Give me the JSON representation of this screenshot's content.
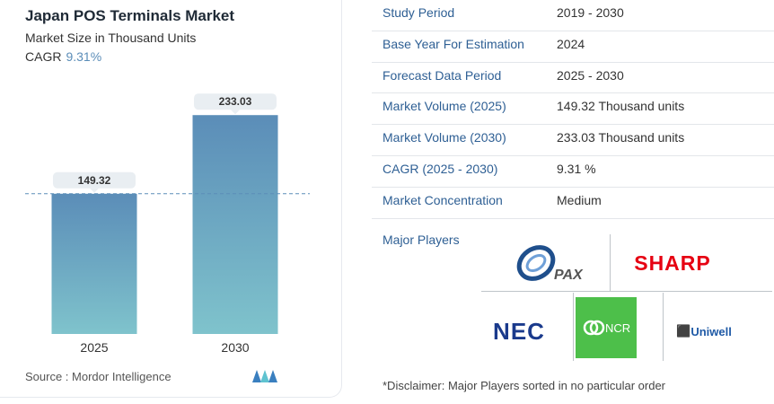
{
  "header": {
    "title": "Japan POS Terminals Market",
    "subtitle": "Market Size in Thousand Units",
    "cagr_label": "CAGR",
    "cagr_value": "9.31%"
  },
  "chart_data": {
    "type": "bar",
    "categories": [
      "2025",
      "2030"
    ],
    "values": [
      149.32,
      233.03
    ],
    "data_labels": [
      "149.32",
      "233.03"
    ],
    "ylim": [
      0,
      260
    ],
    "colors": {
      "bar_top": "#5b8db8",
      "bar_bottom": "#7fc3cc",
      "reference_line": "#5b8db8",
      "label_bg": "#e9eef2"
    },
    "reference_line_value": 149.32
  },
  "footer": {
    "source": "Source :  Mordor Intelligence"
  },
  "table": {
    "rows": [
      {
        "key": "Study Period",
        "value": "2019 - 2030"
      },
      {
        "key": "Base Year For Estimation",
        "value": "2024"
      },
      {
        "key": "Forecast Data Period",
        "value": "2025 - 2030"
      },
      {
        "key": "Market Volume (2025)",
        "value": "149.32 Thousand units"
      },
      {
        "key": "Market Volume (2030)",
        "value": "233.03 Thousand units"
      },
      {
        "key": "CAGR (2025 - 2030)",
        "value": "9.31 %"
      },
      {
        "key": "Market Concentration",
        "value": "Medium"
      }
    ]
  },
  "players": {
    "label": "Major Players",
    "logos": {
      "pax": "PAX",
      "sharp": "SHARP",
      "nec": "NEC",
      "ncr": "NCR",
      "uniwell": "Uniwell"
    },
    "colors": {
      "sharp": "#e60012",
      "nec": "#1a3a8c",
      "ncr_bg": "#4dbf4a",
      "uniwell": "#1f5aa6",
      "pax": "#1f4f8c"
    }
  },
  "disclaimer": "*Disclaimer: Major Players sorted in no particular order"
}
